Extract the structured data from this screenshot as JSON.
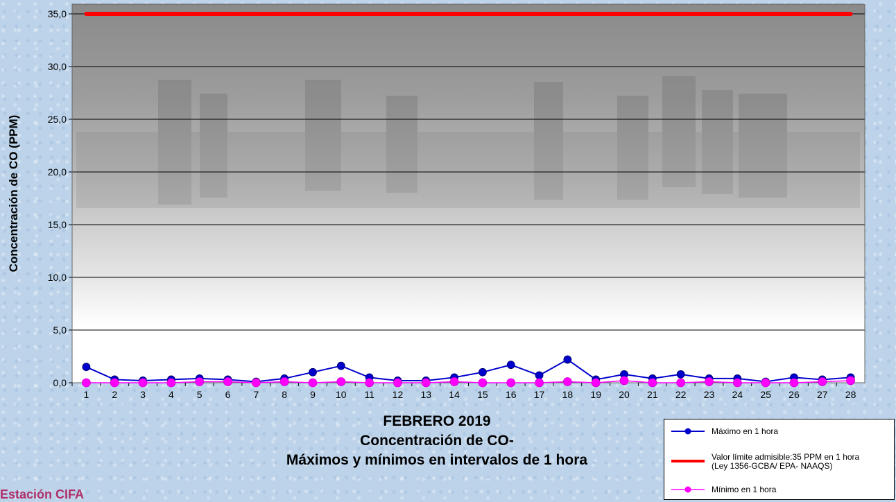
{
  "chart_data": {
    "type": "line",
    "title_lines": [
      "FEBRERO 2019",
      "Concentración de CO-",
      "Máximos y mínimos en intervalos de 1 hora"
    ],
    "ylabel": "Concentración de CO (PPM)",
    "xlabel": "",
    "ylim": [
      0,
      35
    ],
    "yticks": [
      "0,0",
      "5,0",
      "10,0",
      "15,0",
      "20,0",
      "25,0",
      "30,0",
      "35,0"
    ],
    "categories": [
      "1",
      "2",
      "3",
      "4",
      "5",
      "6",
      "7",
      "8",
      "9",
      "10",
      "11",
      "12",
      "13",
      "14",
      "15",
      "16",
      "17",
      "18",
      "19",
      "20",
      "21",
      "22",
      "23",
      "24",
      "25",
      "26",
      "27",
      "28"
    ],
    "series": [
      {
        "name": "Máximo en 1 hora",
        "color": "#0000cc",
        "values": [
          1.5,
          0.3,
          0.2,
          0.3,
          0.4,
          0.3,
          0.1,
          0.4,
          1.0,
          1.6,
          0.5,
          0.2,
          0.2,
          0.5,
          1.0,
          1.7,
          0.7,
          2.2,
          0.3,
          0.8,
          0.4,
          0.8,
          0.4,
          0.4,
          0.1,
          0.5,
          0.3,
          0.5
        ]
      },
      {
        "name": "Valor límite admisible:35 PPM en 1 hora\n(Ley 1356-GCBA/ EPA- NAAQS)",
        "name_line1": "Valor límite admisible:35 PPM en 1 hora",
        "name_line2": "(Ley 1356-GCBA/ EPA- NAAQS)",
        "color": "#ff0000",
        "values": [
          35,
          35,
          35,
          35,
          35,
          35,
          35,
          35,
          35,
          35,
          35,
          35,
          35,
          35,
          35,
          35,
          35,
          35,
          35,
          35,
          35,
          35,
          35,
          35,
          35,
          35,
          35,
          35
        ]
      },
      {
        "name": "Mínimo en 1 hora",
        "color": "#ff00ff",
        "values": [
          0.0,
          0.0,
          0.0,
          0.0,
          0.1,
          0.1,
          0.0,
          0.1,
          0.0,
          0.1,
          0.0,
          0.0,
          0.0,
          0.1,
          0.0,
          0.0,
          0.0,
          0.1,
          0.0,
          0.2,
          0.0,
          0.0,
          0.1,
          0.0,
          0.0,
          0.0,
          0.1,
          0.2
        ]
      }
    ],
    "grid": true,
    "legend_position": "bottom-right"
  },
  "station": "Estación CIFA"
}
